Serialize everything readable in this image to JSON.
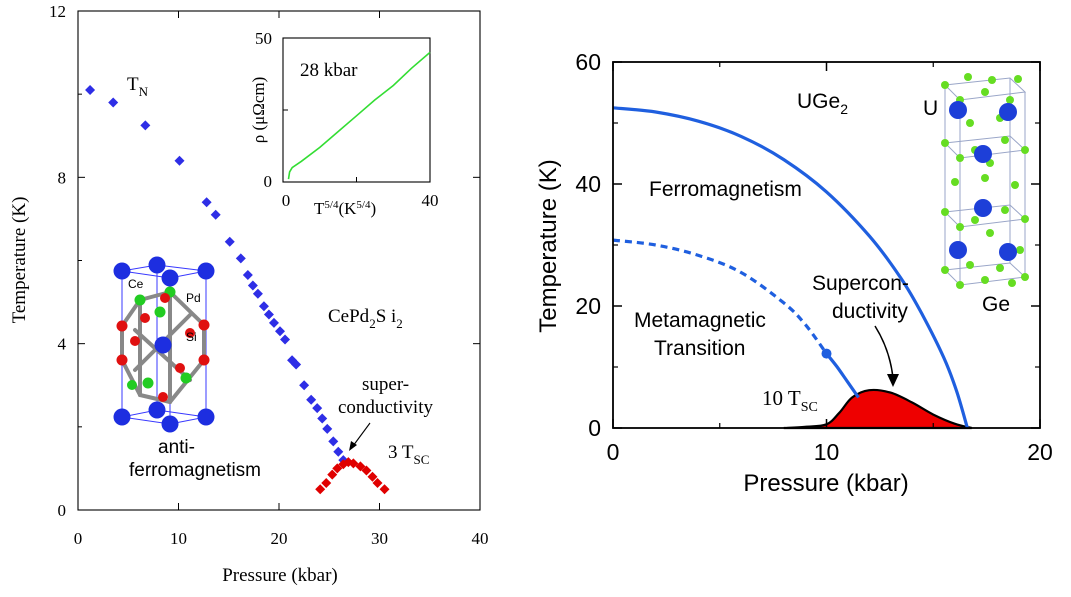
{
  "chart_data": [
    {
      "type": "scatter",
      "xlabel": "Pressure (kbar)",
      "ylabel": "Temperature (K)",
      "xlim": [
        0,
        40
      ],
      "ylim": [
        0,
        12
      ],
      "xticks": [
        "0",
        "10",
        "20",
        "30",
        "40"
      ],
      "yticks": [
        "0",
        "4",
        "8",
        "12"
      ],
      "grid": false,
      "series": [
        {
          "name": "T_N",
          "color": "#2e2ee6",
          "marker": "diamond",
          "points": [
            [
              1.2,
              10.1
            ],
            [
              3.5,
              9.8
            ],
            [
              6.7,
              9.25
            ],
            [
              10.1,
              8.4
            ],
            [
              12.8,
              7.4
            ],
            [
              13.7,
              7.1
            ],
            [
              15.1,
              6.45
            ],
            [
              16.2,
              6.05
            ],
            [
              16.9,
              5.65
            ],
            [
              17.4,
              5.4
            ],
            [
              17.9,
              5.2
            ],
            [
              18.5,
              4.9
            ],
            [
              19.0,
              4.7
            ],
            [
              19.5,
              4.5
            ],
            [
              20.1,
              4.3
            ],
            [
              20.6,
              4.1
            ],
            [
              21.3,
              3.6
            ],
            [
              21.7,
              3.5
            ],
            [
              22.5,
              3.0
            ],
            [
              23.2,
              2.65
            ],
            [
              23.8,
              2.45
            ],
            [
              24.3,
              2.2
            ],
            [
              24.8,
              1.95
            ],
            [
              25.4,
              1.65
            ],
            [
              25.9,
              1.4
            ],
            [
              26.4,
              1.2
            ]
          ]
        },
        {
          "name": "3 T_SC",
          "color": "#e00000",
          "marker": "diamond",
          "points": [
            [
              24.1,
              0.5
            ],
            [
              24.7,
              0.65
            ],
            [
              25.3,
              0.85
            ],
            [
              25.8,
              1.0
            ],
            [
              26.4,
              1.1
            ],
            [
              26.9,
              1.15
            ],
            [
              27.4,
              1.12
            ],
            [
              28.1,
              1.05
            ],
            [
              28.7,
              0.95
            ],
            [
              29.3,
              0.8
            ],
            [
              29.8,
              0.65
            ],
            [
              30.5,
              0.5
            ]
          ]
        }
      ],
      "annotations": {
        "tn": "T",
        "tn_sub": "N",
        "compound_a": "CePd",
        "compound_b": "2",
        "compound_c": "S i",
        "compound_d": "2",
        "sc1": "super-",
        "sc2": "conductivity",
        "sc_factor": "3 T",
        "sc_sub": "SC",
        "afm1": "anti-",
        "afm2": "ferromagnetism",
        "atom_ce": "Ce",
        "atom_pd": "Pd",
        "atom_si": "Si"
      },
      "inset": {
        "type": "line",
        "label": "28 kbar",
        "xlim": [
          0,
          40
        ],
        "ylim": [
          0,
          50
        ],
        "xticks": [
          "0",
          "40"
        ],
        "yticks": [
          "0",
          "50"
        ],
        "xlabel_a": "T",
        "xlabel_b": "5/4",
        "xlabel_c": "(K",
        "xlabel_d": "5/4",
        "xlabel_e": ")",
        "ylabel": "ρ (μΩcm)",
        "color": "#33dd33",
        "points": [
          [
            1.5,
            1
          ],
          [
            1.8,
            3.5
          ],
          [
            2.5,
            5
          ],
          [
            5,
            7.2
          ],
          [
            10,
            12
          ],
          [
            15,
            17.5
          ],
          [
            20,
            23
          ],
          [
            25,
            28.5
          ],
          [
            30,
            33.5
          ],
          [
            35,
            39.5
          ],
          [
            40,
            45
          ]
        ]
      }
    },
    {
      "type": "line",
      "xlabel": "Pressure (kbar)",
      "ylabel": "Temperature (K)",
      "xlim": [
        0,
        20
      ],
      "ylim": [
        0,
        60
      ],
      "xticks": [
        "0",
        "10",
        "20"
      ],
      "yticks": [
        "0",
        "20",
        "40",
        "60"
      ],
      "grid": false,
      "series": [
        {
          "name": "Ferromagnetism",
          "color": "#1f5fdf",
          "style": "solid",
          "points": [
            [
              0,
              52.5
            ],
            [
              2,
              51.8
            ],
            [
              4,
              50.3
            ],
            [
              6,
              47.8
            ],
            [
              8,
              44.0
            ],
            [
              10,
              38.7
            ],
            [
              12,
              31.5
            ],
            [
              13.5,
              24.5
            ],
            [
              14.5,
              18.5
            ],
            [
              15.5,
              11.5
            ],
            [
              16.1,
              6.0
            ],
            [
              16.6,
              0
            ]
          ]
        },
        {
          "name": "Metamagnetic Transition",
          "color": "#1f5fdf",
          "style": "dashed",
          "points": [
            [
              0,
              30.8
            ],
            [
              2,
              30.0
            ],
            [
              4,
              28.3
            ],
            [
              6,
              25.5
            ],
            [
              8,
              20.5
            ],
            [
              9,
              17.0
            ],
            [
              10,
              12.2
            ]
          ]
        },
        {
          "name": "Metamagnetic Transition (solid end)",
          "color": "#1f5fdf",
          "style": "solid",
          "points": [
            [
              10,
              12.2
            ],
            [
              10.5,
              10.0
            ],
            [
              11.0,
              7.5
            ],
            [
              11.5,
              5.0
            ]
          ]
        },
        {
          "name": "10 T_SC",
          "color": "#e00000",
          "style": "filled",
          "points": [
            [
              8,
              0
            ],
            [
              9.0,
              0.2
            ],
            [
              10.0,
              0.6
            ],
            [
              10.6,
              2.5
            ],
            [
              11.2,
              5.0
            ],
            [
              12.0,
              6.2
            ],
            [
              13.0,
              5.8
            ],
            [
              14.0,
              4.2
            ],
            [
              15.0,
              2.2
            ],
            [
              16.0,
              0.7
            ],
            [
              16.8,
              0
            ]
          ]
        }
      ],
      "marker_point": [
        10,
        12.2
      ],
      "annotations": {
        "ferro": "Ferromagnetism",
        "meta1": "Metamagnetic",
        "meta2": "Transition",
        "sc1": "Supercon-",
        "sc2": "ductivity",
        "tsc": "10 T",
        "tsc_sub": "SC",
        "compound_a": "UGe",
        "compound_b": "2",
        "atom_u": "U",
        "atom_ge": "Ge"
      }
    }
  ]
}
